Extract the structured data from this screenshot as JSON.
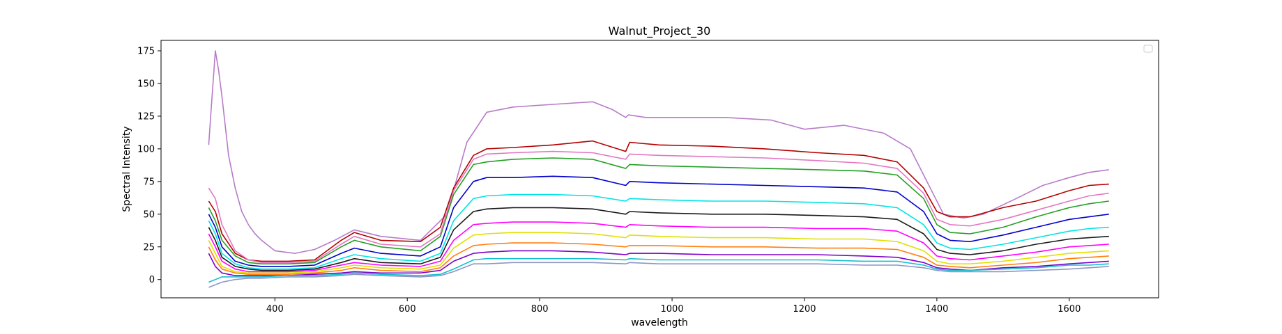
{
  "chart_data": {
    "type": "line",
    "title": "Walnut_Project_30",
    "xlabel": "wavelength",
    "ylabel": "Spectral Intensity",
    "xlim": [
      228,
      1735
    ],
    "ylim": [
      -14,
      183
    ],
    "xticks": [
      400,
      600,
      800,
      1000,
      1200,
      1400,
      1600
    ],
    "yticks": [
      0,
      25,
      50,
      75,
      100,
      125,
      150,
      175
    ],
    "grid": false,
    "legend": "top-right (empty)",
    "series_note": "Approximately one hundred overlapping spectra, each in a different color; representative envelopes listed below.",
    "series": [
      {
        "color": "#b77bc9",
        "x": [
          300,
          303,
          310,
          315,
          320,
          330,
          340,
          350,
          360,
          370,
          380,
          400,
          430,
          460,
          490,
          520,
          560,
          620,
          660,
          690,
          720,
          760,
          820,
          880,
          910,
          930,
          934,
          960,
          1020,
          1080,
          1150,
          1200,
          1260,
          1320,
          1360,
          1390,
          1410,
          1440,
          1470,
          1520,
          1560,
          1600,
          1630,
          1660
        ],
        "y": [
          103,
          125,
          175,
          160,
          140,
          95,
          70,
          52,
          42,
          35,
          30,
          22,
          20,
          23,
          30,
          38,
          33,
          30,
          50,
          105,
          128,
          132,
          134,
          136,
          130,
          124,
          126,
          124,
          124,
          124,
          122,
          115,
          118,
          112,
          100,
          70,
          50,
          47,
          50,
          62,
          72,
          78,
          82,
          84
        ]
      },
      {
        "color": "#b30000",
        "x": [
          300,
          310,
          320,
          340,
          360,
          380,
          420,
          460,
          500,
          520,
          560,
          620,
          650,
          670,
          700,
          720,
          760,
          820,
          880,
          930,
          936,
          980,
          1060,
          1140,
          1220,
          1290,
          1340,
          1380,
          1400,
          1420,
          1450,
          1500,
          1550,
          1600,
          1630,
          1660
        ],
        "y": [
          60,
          52,
          35,
          20,
          15,
          14,
          14,
          15,
          30,
          36,
          30,
          29,
          40,
          70,
          95,
          100,
          101,
          103,
          106,
          98,
          105,
          103,
          102,
          100,
          97,
          95,
          90,
          70,
          52,
          48,
          48,
          55,
          60,
          68,
          72,
          73
        ]
      },
      {
        "color": "#22a022",
        "x": [
          300,
          310,
          320,
          340,
          360,
          380,
          420,
          460,
          500,
          520,
          560,
          620,
          650,
          670,
          700,
          720,
          760,
          820,
          880,
          930,
          936,
          980,
          1060,
          1140,
          1220,
          1290,
          1340,
          1380,
          1400,
          1420,
          1450,
          1500,
          1550,
          1600,
          1630,
          1660
        ],
        "y": [
          55,
          45,
          30,
          18,
          13,
          12,
          12,
          13,
          25,
          30,
          25,
          22,
          33,
          65,
          88,
          90,
          92,
          93,
          92,
          85,
          88,
          87,
          86,
          85,
          84,
          83,
          80,
          62,
          42,
          36,
          35,
          40,
          48,
          55,
          58,
          60
        ]
      },
      {
        "color": "#0000cc",
        "x": [
          300,
          310,
          320,
          340,
          360,
          380,
          420,
          460,
          500,
          520,
          560,
          620,
          650,
          670,
          700,
          720,
          760,
          820,
          880,
          930,
          936,
          980,
          1060,
          1140,
          1220,
          1290,
          1340,
          1380,
          1400,
          1420,
          1450,
          1500,
          1550,
          1600,
          1630,
          1660
        ],
        "y": [
          50,
          40,
          25,
          14,
          11,
          10,
          10,
          11,
          20,
          24,
          20,
          18,
          25,
          55,
          75,
          78,
          78,
          79,
          78,
          72,
          75,
          74,
          73,
          72,
          71,
          70,
          67,
          52,
          35,
          30,
          29,
          34,
          40,
          46,
          48,
          50
        ]
      },
      {
        "color": "#00e5e5",
        "x": [
          300,
          310,
          320,
          340,
          360,
          380,
          420,
          460,
          500,
          520,
          560,
          620,
          650,
          670,
          700,
          720,
          760,
          820,
          880,
          930,
          936,
          980,
          1060,
          1140,
          1220,
          1290,
          1340,
          1380,
          1400,
          1420,
          1450,
          1500,
          1550,
          1600,
          1630,
          1660
        ],
        "y": [
          45,
          35,
          20,
          12,
          9,
          8,
          8,
          9,
          16,
          19,
          16,
          14,
          20,
          45,
          62,
          64,
          65,
          65,
          64,
          60,
          62,
          61,
          60,
          60,
          59,
          58,
          55,
          42,
          28,
          24,
          23,
          27,
          32,
          37,
          39,
          40
        ]
      },
      {
        "color": "#1a1a1a",
        "x": [
          300,
          310,
          320,
          340,
          360,
          380,
          420,
          460,
          500,
          520,
          560,
          620,
          650,
          670,
          700,
          720,
          760,
          820,
          880,
          930,
          936,
          980,
          1060,
          1140,
          1220,
          1290,
          1340,
          1380,
          1400,
          1420,
          1450,
          1500,
          1550,
          1600,
          1630,
          1660
        ],
        "y": [
          40,
          30,
          17,
          10,
          8,
          7,
          7,
          8,
          13,
          16,
          13,
          12,
          17,
          38,
          52,
          54,
          55,
          55,
          54,
          50,
          52,
          51,
          50,
          50,
          49,
          48,
          46,
          35,
          23,
          20,
          19,
          22,
          27,
          31,
          32,
          33
        ]
      },
      {
        "color": "#ff00ff",
        "x": [
          300,
          310,
          320,
          340,
          360,
          380,
          420,
          460,
          500,
          520,
          560,
          620,
          650,
          670,
          700,
          720,
          760,
          820,
          880,
          930,
          936,
          980,
          1060,
          1140,
          1220,
          1290,
          1340,
          1380,
          1400,
          1420,
          1450,
          1500,
          1550,
          1600,
          1630,
          1660
        ],
        "y": [
          35,
          25,
          14,
          8,
          6,
          6,
          6,
          7,
          11,
          13,
          11,
          10,
          14,
          30,
          42,
          43,
          44,
          44,
          43,
          40,
          42,
          41,
          40,
          40,
          39,
          39,
          37,
          28,
          18,
          16,
          15,
          18,
          21,
          25,
          26,
          27
        ]
      },
      {
        "color": "#e0e000",
        "x": [
          300,
          310,
          320,
          340,
          360,
          380,
          420,
          460,
          500,
          520,
          560,
          620,
          650,
          670,
          700,
          720,
          760,
          820,
          880,
          930,
          936,
          980,
          1060,
          1140,
          1220,
          1290,
          1340,
          1380,
          1400,
          1420,
          1450,
          1500,
          1550,
          1600,
          1630,
          1660
        ],
        "y": [
          30,
          20,
          10,
          6,
          5,
          5,
          5,
          6,
          9,
          11,
          9,
          8,
          11,
          24,
          34,
          35,
          36,
          36,
          35,
          32,
          34,
          33,
          32,
          32,
          31,
          31,
          29,
          22,
          14,
          12,
          12,
          14,
          17,
          20,
          21,
          22
        ]
      },
      {
        "color": "#ff7f0e",
        "x": [
          300,
          310,
          320,
          340,
          360,
          380,
          420,
          460,
          500,
          520,
          560,
          620,
          650,
          670,
          700,
          720,
          760,
          820,
          880,
          930,
          936,
          980,
          1060,
          1140,
          1220,
          1290,
          1340,
          1380,
          1400,
          1420,
          1450,
          1500,
          1550,
          1600,
          1630,
          1660
        ],
        "y": [
          25,
          15,
          8,
          5,
          4,
          4,
          4,
          5,
          7,
          9,
          7,
          6,
          9,
          18,
          26,
          27,
          28,
          28,
          27,
          25,
          26,
          26,
          25,
          25,
          24,
          24,
          23,
          17,
          11,
          10,
          9,
          11,
          13,
          16,
          17,
          18
        ]
      },
      {
        "color": "#7b00c8",
        "x": [
          300,
          310,
          320,
          340,
          360,
          380,
          420,
          460,
          500,
          520,
          560,
          620,
          650,
          670,
          700,
          720,
          760,
          820,
          880,
          930,
          936,
          980,
          1060,
          1140,
          1220,
          1290,
          1340,
          1380,
          1400,
          1420,
          1450,
          1500,
          1550,
          1600,
          1630,
          1660
        ],
        "y": [
          20,
          10,
          5,
          3,
          3,
          3,
          3,
          4,
          5,
          6,
          5,
          5,
          7,
          14,
          20,
          21,
          22,
          22,
          21,
          19,
          20,
          20,
          19,
          19,
          19,
          18,
          17,
          13,
          9,
          8,
          7,
          9,
          10,
          12,
          13,
          14
        ]
      },
      {
        "color": "#8c96c6",
        "x": [
          300,
          310,
          320,
          340,
          360,
          380,
          420,
          460,
          500,
          520,
          560,
          620,
          650,
          670,
          700,
          720,
          760,
          820,
          880,
          930,
          936,
          980,
          1060,
          1140,
          1220,
          1290,
          1340,
          1380,
          1400,
          1420,
          1450,
          1500,
          1550,
          1600,
          1630,
          1660
        ],
        "y": [
          -6,
          -4,
          -2,
          0,
          1,
          1,
          2,
          2,
          3,
          4,
          3,
          2,
          3,
          6,
          12,
          12,
          13,
          13,
          13,
          12,
          13,
          12,
          12,
          12,
          12,
          11,
          11,
          9,
          7,
          6,
          6,
          6,
          7,
          8,
          9,
          10
        ]
      },
      {
        "color": "#17becf",
        "x": [
          300,
          310,
          320,
          340,
          360,
          380,
          420,
          460,
          500,
          520,
          560,
          620,
          650,
          670,
          700,
          720,
          760,
          820,
          880,
          930,
          936,
          980,
          1060,
          1140,
          1220,
          1290,
          1340,
          1380,
          1400,
          1420,
          1450,
          1500,
          1550,
          1600,
          1630,
          1660
        ],
        "y": [
          -2,
          0,
          2,
          2,
          2,
          2,
          3,
          3,
          4,
          5,
          4,
          3,
          4,
          8,
          15,
          16,
          16,
          16,
          16,
          15,
          16,
          15,
          15,
          15,
          15,
          14,
          14,
          11,
          8,
          7,
          7,
          8,
          9,
          11,
          11,
          12
        ]
      },
      {
        "color": "#e377c2",
        "x": [
          300,
          310,
          320,
          340,
          360,
          380,
          420,
          460,
          500,
          520,
          560,
          620,
          650,
          670,
          700,
          720,
          760,
          820,
          880,
          930,
          936,
          980,
          1060,
          1140,
          1220,
          1290,
          1340,
          1380,
          1400,
          1420,
          1450,
          1500,
          1550,
          1600,
          1630,
          1660
        ],
        "y": [
          70,
          62,
          42,
          22,
          15,
          13,
          13,
          14,
          27,
          33,
          27,
          25,
          35,
          68,
          92,
          96,
          97,
          98,
          97,
          92,
          96,
          95,
          94,
          93,
          91,
          89,
          85,
          66,
          46,
          42,
          41,
          46,
          53,
          60,
          64,
          66
        ]
      }
    ]
  }
}
